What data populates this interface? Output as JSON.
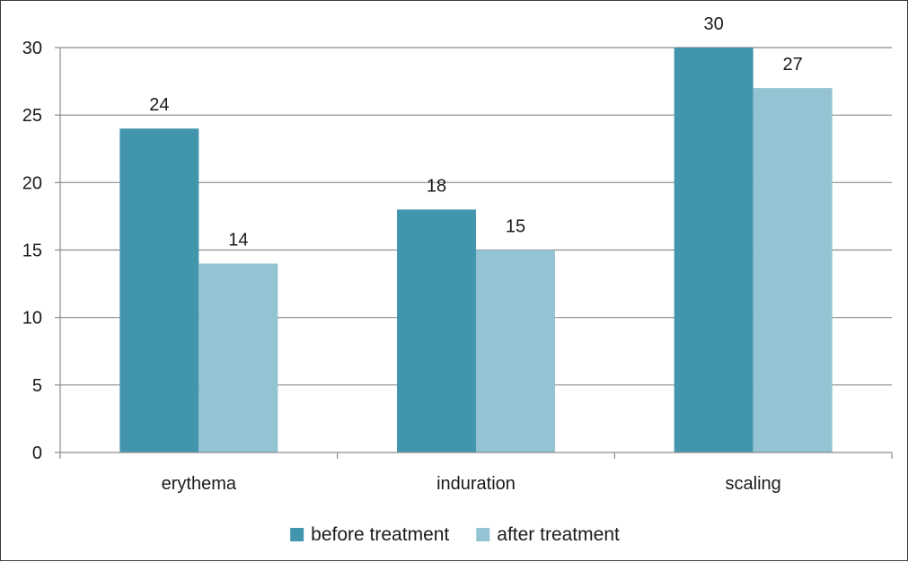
{
  "chart_data": {
    "type": "bar",
    "title": "",
    "xlabel": "",
    "ylabel": "",
    "categories": [
      "erythema",
      "induration",
      "scaling"
    ],
    "series": [
      {
        "name": "before treatment",
        "values": [
          24,
          18,
          30
        ],
        "color": "#4196AE"
      },
      {
        "name": "after treatment",
        "values": [
          14,
          15,
          27
        ],
        "color": "#94C3D4"
      }
    ],
    "ylim": [
      0,
      30
    ],
    "yticks": [
      0,
      5,
      10,
      15,
      20,
      25,
      30
    ],
    "grid": true,
    "legend_position": "bottom"
  },
  "colors": {
    "gridline": "#8c8c8c",
    "axis": "#8c8c8c",
    "frame": "#3a3a3a"
  }
}
